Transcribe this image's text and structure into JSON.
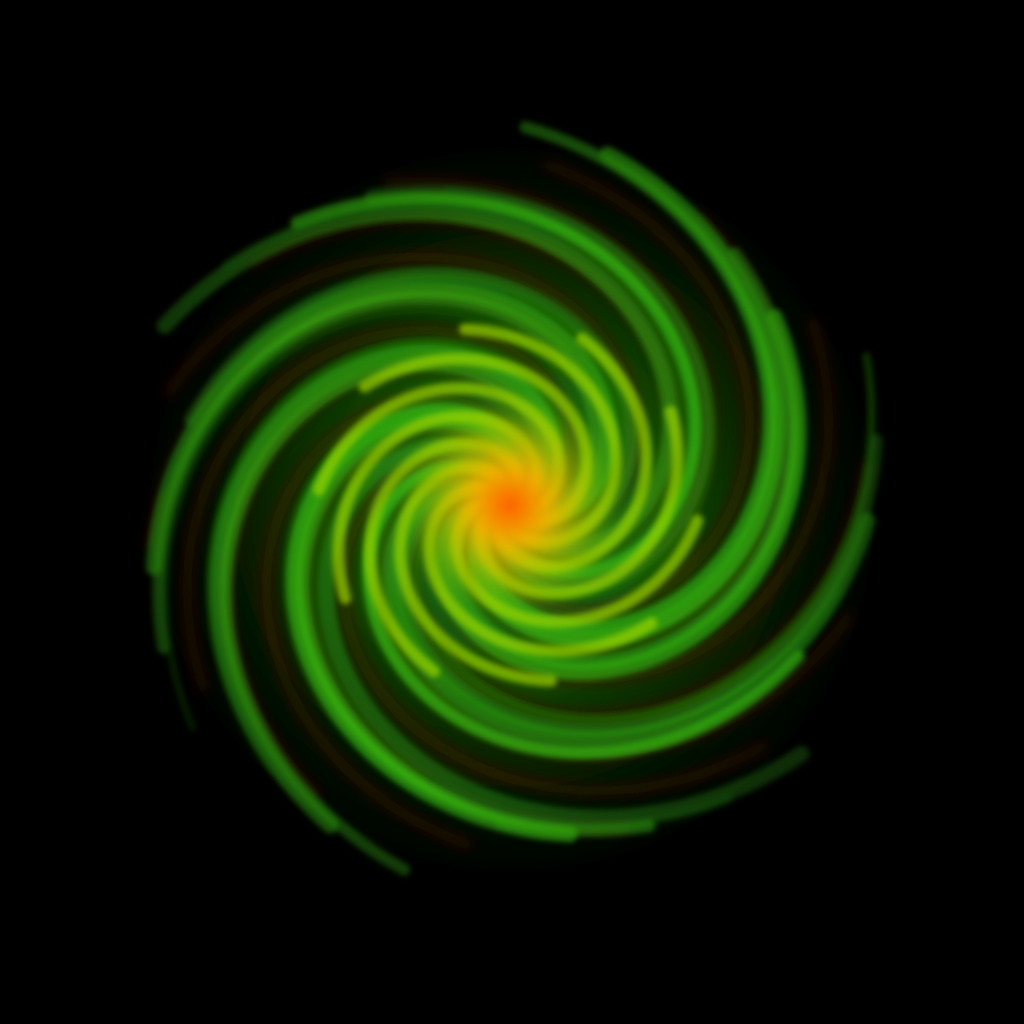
{
  "scene": {
    "subject": "spiral-swirl",
    "colors": {
      "background": "#000000",
      "core": "#ff5a00",
      "core_glow": "#ffb000",
      "inner_arm": "#9ad400",
      "arm": "#38c010",
      "arm_dark": "#1a6a08",
      "dark_lane": "#4a1a00",
      "outer_fade": "#0a2a04"
    }
  }
}
